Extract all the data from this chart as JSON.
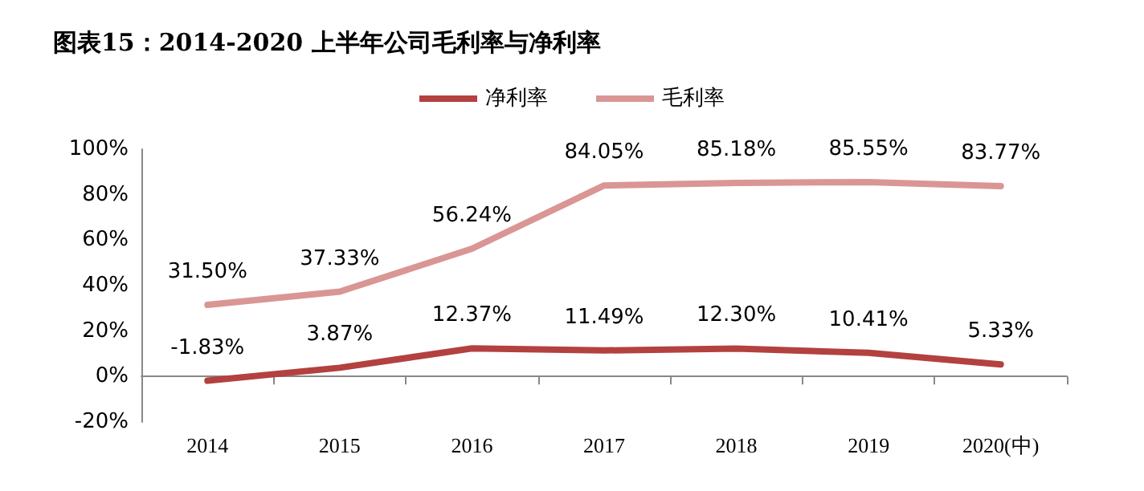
{
  "chart_data": {
    "type": "line",
    "title": "图表15：2014-2020 上半年公司毛利率与净利率",
    "categories": [
      "2014",
      "2015",
      "2016",
      "2017",
      "2018",
      "2019",
      "2020(中)"
    ],
    "series": [
      {
        "name": "净利率",
        "color": "#b3413f",
        "values": [
          -1.83,
          3.87,
          12.37,
          11.49,
          12.3,
          10.41,
          5.33
        ],
        "value_labels": [
          "-1.83%",
          "3.87%",
          "12.37%",
          "11.49%",
          "12.30%",
          "10.41%",
          "5.33%"
        ]
      },
      {
        "name": "毛利率",
        "color": "#d99694",
        "values": [
          31.5,
          37.33,
          56.24,
          84.05,
          85.18,
          85.55,
          83.77
        ],
        "value_labels": [
          "31.50%",
          "37.33%",
          "56.24%",
          "84.05%",
          "85.18%",
          "85.55%",
          "83.77%"
        ]
      }
    ],
    "ylim": [
      -20,
      100
    ],
    "yticks": [
      {
        "value": -20,
        "label": "-20%"
      },
      {
        "value": 0,
        "label": "0%"
      },
      {
        "value": 20,
        "label": "20%"
      },
      {
        "value": 40,
        "label": "40%"
      },
      {
        "value": 60,
        "label": "60%"
      },
      {
        "value": 80,
        "label": "80%"
      },
      {
        "value": 100,
        "label": "100%"
      }
    ],
    "legend": "top",
    "marker": "none",
    "line_style": "solid"
  }
}
